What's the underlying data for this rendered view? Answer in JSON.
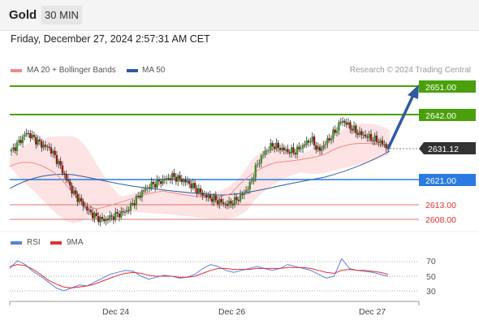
{
  "header": {
    "title": "Gold",
    "timeframe": "30 MIN"
  },
  "timestamp": "Friday, December 27, 2024 2:57:31 AM CET",
  "legend": [
    {
      "label": "MA 20 + Bollinger Bands",
      "color": "#f08a8a"
    },
    {
      "label": "MA 50",
      "color": "#2e5aa0"
    }
  ],
  "credit": "Research © 2024 Trading Central",
  "price_levels": [
    {
      "value": "2651.00",
      "kind": "resistance",
      "color": "#4aa00a"
    },
    {
      "value": "2642.00",
      "kind": "resistance",
      "color": "#4aa00a"
    },
    {
      "value": "2631.12",
      "kind": "last",
      "color": "#333333"
    },
    {
      "value": "2621.00",
      "kind": "pivot",
      "color": "#2a7be0"
    },
    {
      "value": "2613.00",
      "kind": "support",
      "color": "#e03030"
    },
    {
      "value": "2608.00",
      "kind": "support",
      "color": "#e03030"
    }
  ],
  "rsi_legend": [
    {
      "label": "RSI",
      "color": "#5b7fe0"
    },
    {
      "label": "9MA",
      "color": "#e03030"
    }
  ],
  "rsi_levels": [
    "70",
    "50",
    "30"
  ],
  "x_axis": [
    "Dec 24",
    "Dec 26",
    "Dec 27"
  ],
  "chart_data": {
    "type": "line",
    "price_series": [
      2630,
      2633,
      2636,
      2634,
      2632,
      2631,
      2627,
      2622,
      2617,
      2614,
      2611,
      2609,
      2608,
      2609,
      2610,
      2611,
      2614,
      2617,
      2619,
      2620,
      2621,
      2622,
      2621,
      2620,
      2618,
      2616,
      2615,
      2614,
      2613,
      2614,
      2616,
      2619,
      2626,
      2630,
      2632,
      2631,
      2630,
      2630,
      2632,
      2634,
      2630,
      2633,
      2636,
      2640,
      2638,
      2636,
      2635,
      2634,
      2633,
      2631
    ],
    "rsi_series": [
      58,
      66,
      62,
      55,
      50,
      44,
      38,
      35,
      38,
      41,
      40,
      44,
      48,
      52,
      54,
      56,
      55,
      50,
      47,
      49,
      51,
      50,
      48,
      49,
      52,
      58,
      62,
      60,
      56,
      54,
      56,
      58,
      60,
      58,
      56,
      58,
      62,
      60,
      58,
      56,
      52,
      48,
      50,
      68,
      58,
      56,
      55,
      54,
      52,
      50
    ],
    "rsi_ma_series": [
      60,
      62,
      61,
      57,
      52,
      46,
      42,
      39,
      38,
      39,
      40,
      42,
      45,
      48,
      51,
      53,
      54,
      53,
      51,
      50,
      50,
      50,
      49,
      49,
      50,
      53,
      56,
      58,
      58,
      57,
      57,
      57,
      58,
      58,
      58,
      58,
      59,
      59,
      59,
      58,
      56,
      54,
      53,
      56,
      57,
      56,
      56,
      55,
      54,
      52
    ],
    "rsi_ylim": [
      20,
      80
    ]
  }
}
